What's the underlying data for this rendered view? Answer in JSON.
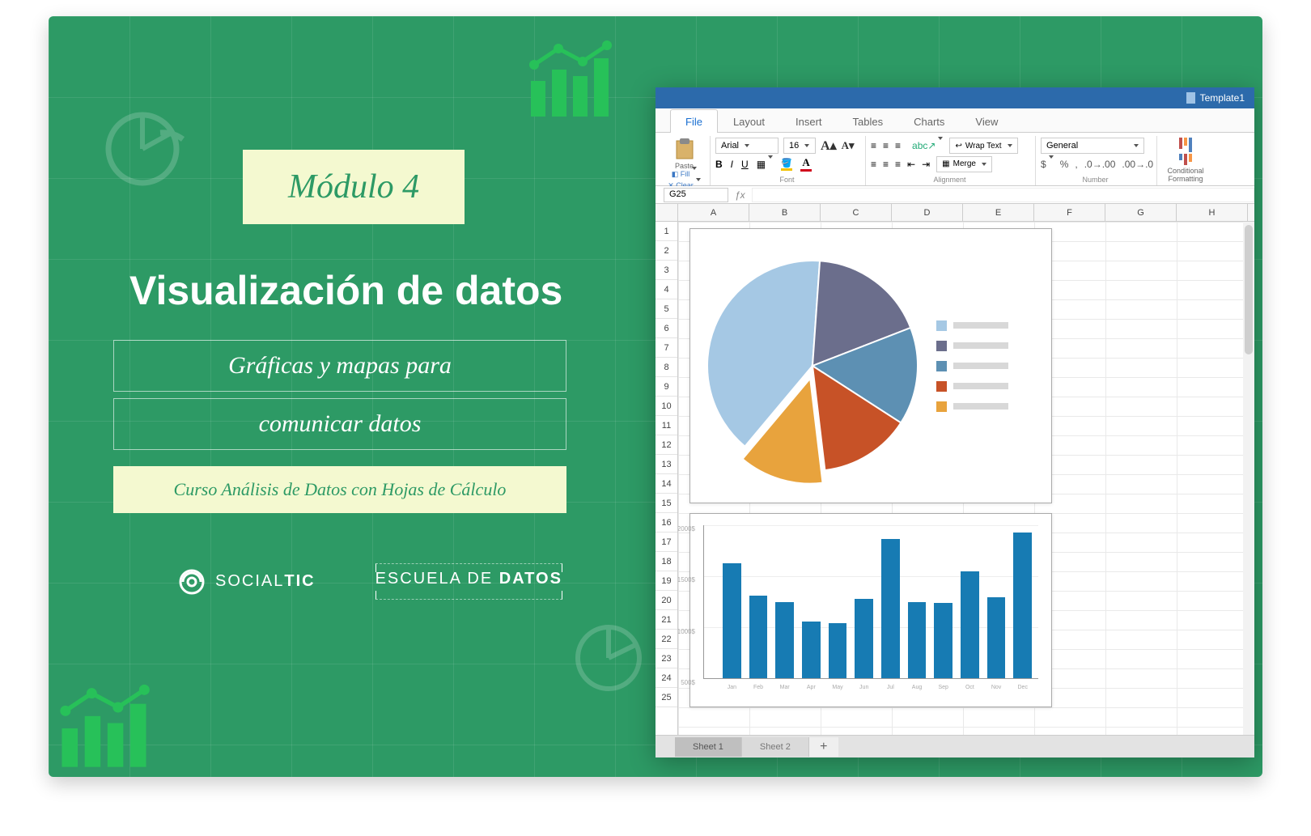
{
  "slide": {
    "background": "#2d9a65",
    "badge_bg": "#f4f9d0",
    "module_label": "Módulo 4",
    "title": "Visualización de datos",
    "subtitle_line1": "Gráficas y mapas para",
    "subtitle_line2": "comunicar datos",
    "course": "Curso Análisis de Datos con Hojas de Cálculo",
    "logo1_a": "SOCIAL",
    "logo1_b": "TIC",
    "logo2_a": "ESCUELA DE ",
    "logo2_b": "DATOS",
    "deco_icon_color": "#27c159"
  },
  "app": {
    "title": "Template1",
    "tabs": [
      "File",
      "Layout",
      "Insert",
      "Tables",
      "Charts",
      "View"
    ],
    "active_tab": 0,
    "ribbon": {
      "paste": "Paste",
      "fill": "Fill",
      "clear": "Clear",
      "font_name": "Arial",
      "font_size": "16",
      "font_group": "Font",
      "align_group": "Alignment",
      "abc_label": "abc",
      "wrap": "Wrap Text",
      "merge": "Merge",
      "number_format": "General",
      "number_group": "Number",
      "cond_fmt_l1": "Conditional",
      "cond_fmt_l2": "Formatting"
    },
    "cell_ref": "G25",
    "columns": [
      "A",
      "B",
      "C",
      "D",
      "E",
      "F",
      "G",
      "H"
    ],
    "rows": 25,
    "sheets": [
      "Sheet 1",
      "Sheet 2"
    ],
    "active_sheet": 0,
    "plus": "+"
  },
  "pie": {
    "type": "pie",
    "values": [
      40,
      18,
      15,
      14,
      13
    ],
    "colors": [
      "#a5c8e4",
      "#6b6e8c",
      "#5d90b3",
      "#c75227",
      "#e8a33d"
    ],
    "rotation_deg": 130,
    "radius": 130
  },
  "bar": {
    "type": "bar",
    "months": [
      "Jan",
      "Feb",
      "Mar",
      "Apr",
      "May",
      "Jun",
      "Jul",
      "Aug",
      "Sep",
      "Oct",
      "Nov",
      "Dec"
    ],
    "values": [
      1500,
      1080,
      1000,
      740,
      720,
      1040,
      1820,
      1000,
      980,
      1400,
      1060,
      1900
    ],
    "ymax": 2000,
    "yticks": [
      "2000$",
      "1500$",
      "1000$",
      "500$"
    ],
    "color": "#177bb3"
  }
}
